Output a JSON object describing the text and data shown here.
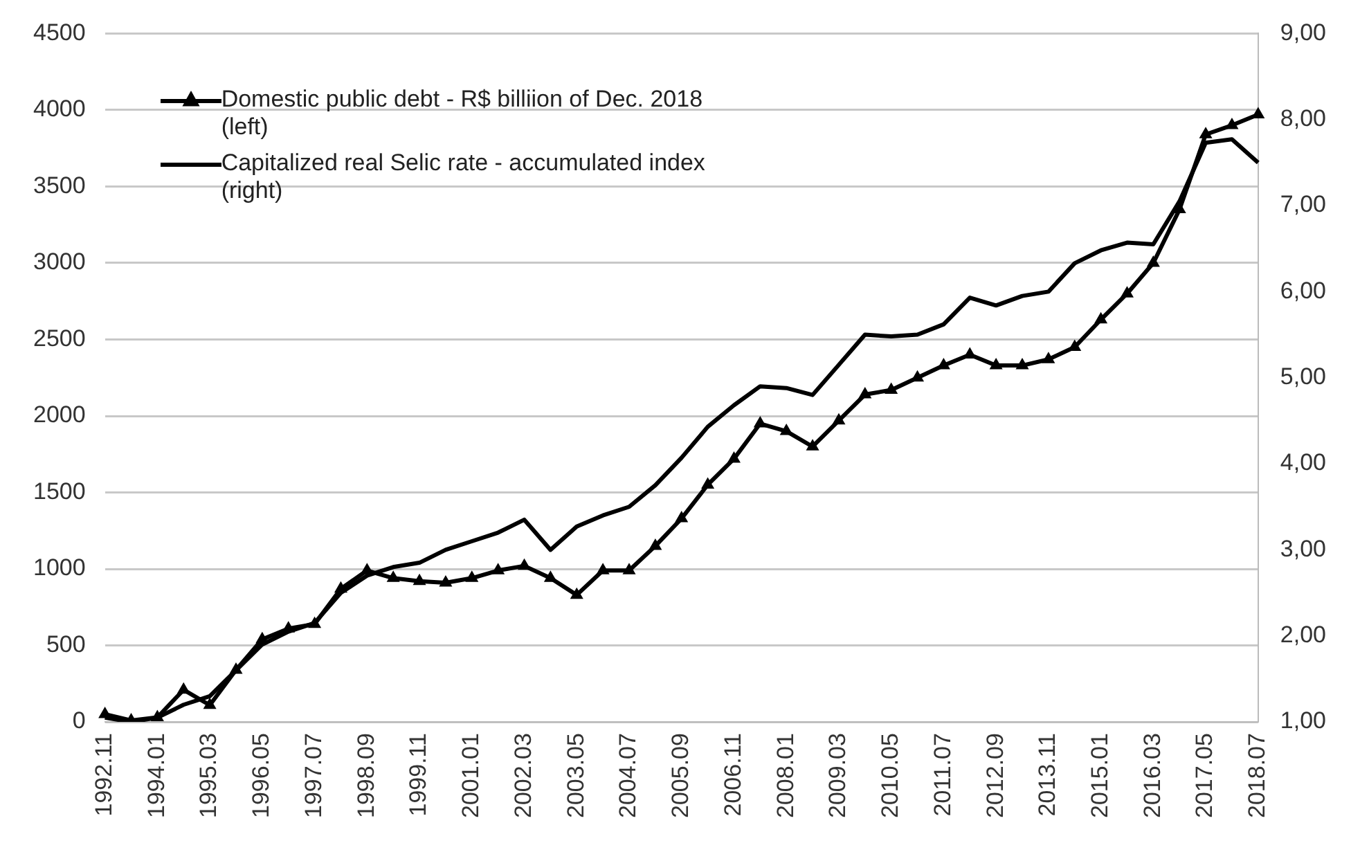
{
  "chart_data": {
    "type": "line",
    "categories": [
      "1992.11",
      null,
      "1994.01",
      null,
      "1995.03",
      null,
      "1996.05",
      null,
      "1997.07",
      null,
      "1998.09",
      null,
      "1999.11",
      null,
      "2001.01",
      null,
      "2002.03",
      null,
      "2003.05",
      null,
      "2004.07",
      null,
      "2005.09",
      null,
      "2006.11",
      null,
      "2008.01",
      null,
      "2009.03",
      null,
      "2010.05",
      null,
      "2011.07",
      null,
      "2012.09",
      null,
      "2013.11",
      null,
      "2015.01",
      null,
      "2016.03",
      null,
      "2017.05",
      null,
      "2018.07"
    ],
    "series": [
      {
        "name": "Domestic public debt - R$ billiion of Dec. 2018 (left)",
        "color": "#000000",
        "marker": "triangle",
        "values": [
          50,
          10,
          30,
          210,
          110,
          340,
          540,
          610,
          640,
          870,
          990,
          940,
          920,
          910,
          940,
          990,
          1020,
          940,
          830,
          990,
          990,
          1150,
          1330,
          1550,
          1720,
          1950,
          1900,
          1800,
          1970,
          2140,
          2170,
          2250,
          2330,
          2400,
          2330,
          2330,
          2370,
          2450,
          2630,
          2800,
          3000,
          3350,
          3840,
          3900,
          3970
        ]
      },
      {
        "name": "Capitalized real Selic rate  - accumulated index (right)",
        "color": "#000000",
        "axis": "y2",
        "marker": "none",
        "values": [
          1.05,
          1.0,
          1.05,
          1.2,
          1.3,
          1.6,
          1.9,
          2.05,
          2.15,
          2.5,
          2.7,
          2.8,
          2.85,
          3.0,
          3.1,
          3.2,
          3.35,
          3.0,
          3.27,
          3.4,
          3.5,
          3.75,
          4.07,
          4.43,
          4.68,
          4.9,
          4.88,
          4.8,
          5.15,
          5.5,
          5.48,
          5.5,
          5.62,
          5.93,
          5.84,
          5.95,
          6.0,
          6.33,
          6.48,
          6.57,
          6.55,
          7.05,
          7.73,
          7.77,
          7.5
        ]
      }
    ],
    "ylim": [
      0,
      4500
    ],
    "yticks": [
      0,
      500,
      1000,
      1500,
      2000,
      2500,
      3000,
      3500,
      4000,
      4500
    ],
    "y2lim": [
      1,
      9
    ],
    "y2ticks": [
      {
        "value": 1,
        "label": "1,00"
      },
      {
        "value": 2,
        "label": "2,00"
      },
      {
        "value": 3,
        "label": "3,00"
      },
      {
        "value": 4,
        "label": "4,00"
      },
      {
        "value": 5,
        "label": "5,00"
      },
      {
        "value": 6,
        "label": "6,00"
      },
      {
        "value": 7,
        "label": "7,00"
      },
      {
        "value": 8,
        "label": "8,00"
      },
      {
        "value": 9,
        "label": "9,00"
      }
    ],
    "grid": "y",
    "legend": "top left",
    "line_style": "solid"
  }
}
